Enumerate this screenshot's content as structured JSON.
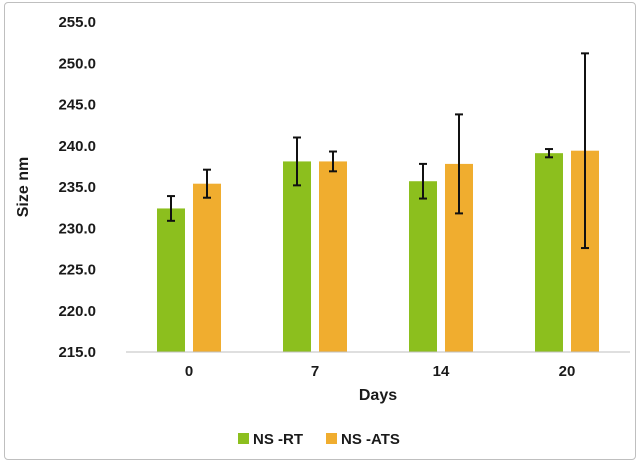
{
  "chart_data": {
    "type": "bar",
    "categories": [
      "0",
      "7",
      "14",
      "20"
    ],
    "series": [
      {
        "name": "NS -RT",
        "color": "#8cbf1e",
        "values": [
          232.4,
          238.1,
          235.7,
          239.1
        ],
        "error": [
          1.5,
          2.9,
          2.1,
          0.5
        ]
      },
      {
        "name": "NS -ATS",
        "color": "#f0ad2f",
        "values": [
          235.4,
          238.1,
          237.8,
          239.4
        ],
        "error": [
          1.7,
          1.2,
          6.0,
          11.8
        ]
      }
    ],
    "xlabel": "Days",
    "ylabel": "Size nm",
    "ylim": [
      215.0,
      255.0
    ],
    "yticks": [
      "215.0",
      "220.0",
      "225.0",
      "230.0",
      "235.0",
      "240.0",
      "245.0",
      "250.0",
      "255.0"
    ],
    "grid": false,
    "legend_position": "bottom"
  }
}
